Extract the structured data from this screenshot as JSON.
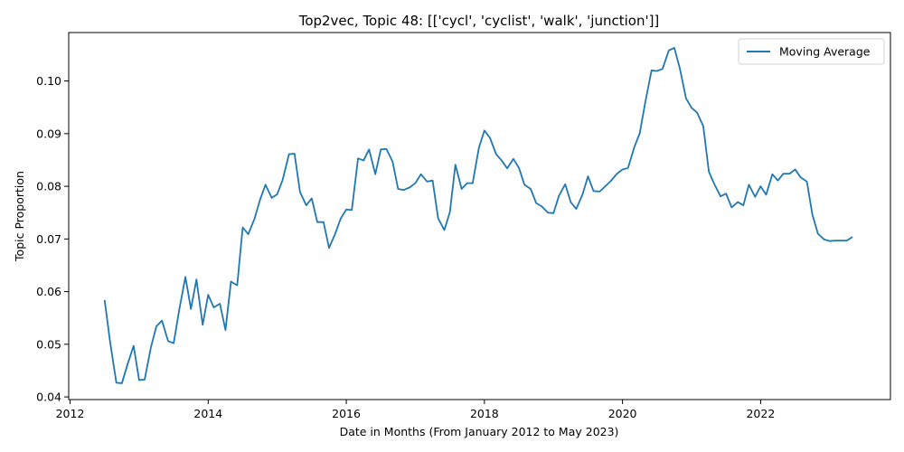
{
  "chart_data": {
    "type": "line",
    "title": "Top2vec, Topic 48: [['cycl', 'cyclist', 'walk', 'junction']]",
    "xlabel": "Date in Months (From January 2012 to May 2023)",
    "ylabel": "Topic Proportion",
    "xlim": [
      2011.98,
      2023.88
    ],
    "ylim": [
      0.0395,
      0.1092
    ],
    "xticks": [
      2012,
      2014,
      2016,
      2018,
      2020,
      2022
    ],
    "xtick_labels": [
      "2012",
      "2014",
      "2016",
      "2018",
      "2020",
      "2022"
    ],
    "yticks": [
      0.04,
      0.05,
      0.06,
      0.07,
      0.08,
      0.09,
      0.1
    ],
    "ytick_labels": [
      "0.04",
      "0.05",
      "0.06",
      "0.07",
      "0.08",
      "0.09",
      "0.10"
    ],
    "grid": false,
    "legend_position": "top-right",
    "series": [
      {
        "name": "Moving Average",
        "color": "#1f77b4",
        "x": [
          2012.5,
          2012.58,
          2012.67,
          2012.75,
          2012.83,
          2012.92,
          2013.0,
          2013.08,
          2013.17,
          2013.25,
          2013.33,
          2013.42,
          2013.5,
          2013.58,
          2013.67,
          2013.75,
          2013.83,
          2013.92,
          2014.0,
          2014.08,
          2014.17,
          2014.25,
          2014.33,
          2014.42,
          2014.5,
          2014.58,
          2014.67,
          2014.75,
          2014.83,
          2014.92,
          2015.0,
          2015.08,
          2015.17,
          2015.25,
          2015.33,
          2015.42,
          2015.5,
          2015.58,
          2015.67,
          2015.75,
          2015.83,
          2015.92,
          2016.0,
          2016.08,
          2016.17,
          2016.25,
          2016.33,
          2016.42,
          2016.5,
          2016.58,
          2016.67,
          2016.75,
          2016.83,
          2016.92,
          2017.0,
          2017.08,
          2017.17,
          2017.25,
          2017.33,
          2017.42,
          2017.5,
          2017.58,
          2017.67,
          2017.75,
          2017.83,
          2017.92,
          2018.0,
          2018.08,
          2018.17,
          2018.25,
          2018.33,
          2018.42,
          2018.5,
          2018.58,
          2018.67,
          2018.75,
          2018.83,
          2018.92,
          2019.0,
          2019.08,
          2019.17,
          2019.25,
          2019.33,
          2019.42,
          2019.5,
          2019.58,
          2019.67,
          2019.75,
          2019.83,
          2019.92,
          2020.0,
          2020.08,
          2020.17,
          2020.25,
          2020.33,
          2020.42,
          2020.5,
          2020.58,
          2020.67,
          2020.75,
          2020.83,
          2020.92,
          2021.0,
          2021.08,
          2021.17,
          2021.25,
          2021.33,
          2021.42,
          2021.5,
          2021.58,
          2021.67,
          2021.75,
          2021.83,
          2021.92,
          2022.0,
          2022.08,
          2022.17,
          2022.25,
          2022.33,
          2022.42,
          2022.5,
          2022.58,
          2022.67,
          2022.75,
          2022.83,
          2022.92,
          2023.0,
          2023.08,
          2023.17,
          2023.25,
          2023.33
        ],
        "y": [
          0.0584,
          0.0504,
          0.0427,
          0.0426,
          0.0461,
          0.0497,
          0.0432,
          0.0433,
          0.0494,
          0.0534,
          0.0545,
          0.0506,
          0.0502,
          0.0565,
          0.0628,
          0.0567,
          0.0623,
          0.0537,
          0.0594,
          0.057,
          0.0577,
          0.0527,
          0.0619,
          0.0612,
          0.0722,
          0.0709,
          0.0738,
          0.0774,
          0.0803,
          0.0778,
          0.0785,
          0.0813,
          0.0861,
          0.0862,
          0.0789,
          0.0764,
          0.0777,
          0.0732,
          0.0732,
          0.0683,
          0.0707,
          0.0739,
          0.0756,
          0.0755,
          0.0853,
          0.0849,
          0.087,
          0.0823,
          0.087,
          0.0871,
          0.0847,
          0.0795,
          0.0793,
          0.0798,
          0.0806,
          0.0823,
          0.0809,
          0.0811,
          0.0739,
          0.0717,
          0.0751,
          0.0841,
          0.0795,
          0.0806,
          0.0806,
          0.0873,
          0.0906,
          0.0892,
          0.0861,
          0.0849,
          0.0834,
          0.0852,
          0.0835,
          0.0803,
          0.0795,
          0.0768,
          0.0762,
          0.075,
          0.0749,
          0.0782,
          0.0804,
          0.077,
          0.0757,
          0.0784,
          0.0819,
          0.0791,
          0.079,
          0.08,
          0.081,
          0.0824,
          0.0832,
          0.0835,
          0.0874,
          0.0901,
          0.096,
          0.102,
          0.1019,
          0.1023,
          0.1058,
          0.1063,
          0.1024,
          0.0967,
          0.0949,
          0.094,
          0.0914,
          0.0828,
          0.0804,
          0.0781,
          0.0786,
          0.076,
          0.077,
          0.0764,
          0.0803,
          0.078,
          0.08,
          0.0784,
          0.0823,
          0.0811,
          0.0824,
          0.0824,
          0.0832,
          0.0817,
          0.0809,
          0.0746,
          0.071,
          0.0699,
          0.0696,
          0.0697,
          0.0697,
          0.0697,
          0.0704
        ]
      }
    ]
  }
}
